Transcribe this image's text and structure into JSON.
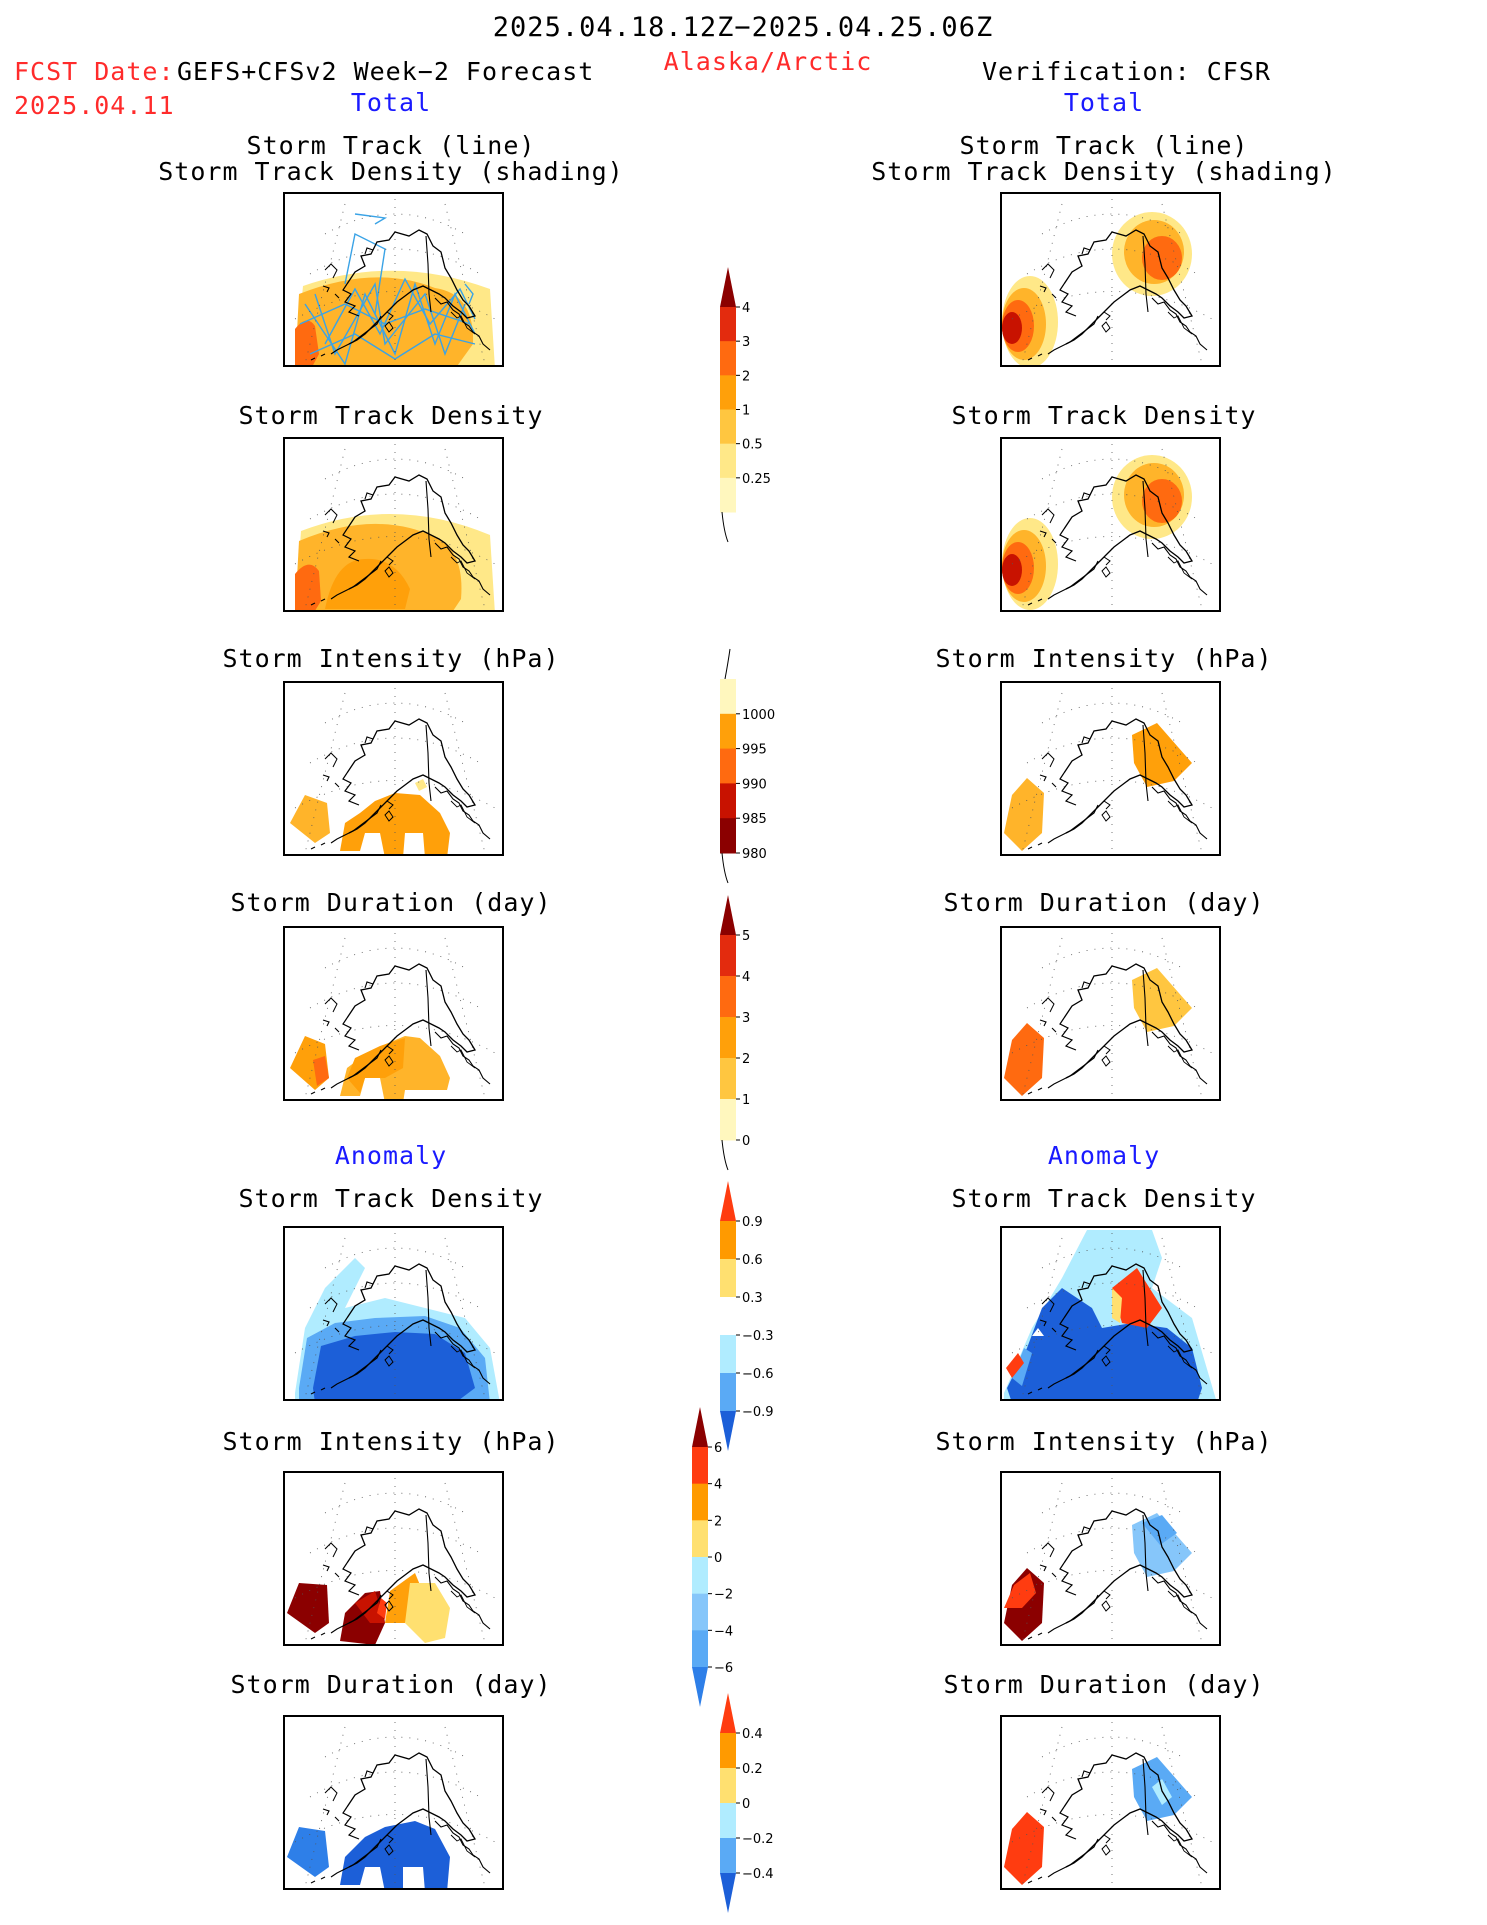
{
  "header": {
    "period": "2025.04.18.12Z−2025.04.25.06Z",
    "region": "Alaska/Arctic",
    "fcst_label": "FCST Date:",
    "fcst_product": "GEFS+CFSv2 Week−2 Forecast",
    "fcst_date": "2025.04.11",
    "verification": "Verification: CFSR"
  },
  "sections": {
    "total": "Total",
    "anomaly": "Anomaly"
  },
  "panel_titles": {
    "track_line": "Storm Track (line)",
    "track_shading": "Storm Track Density (shading)",
    "density": "Storm Track Density",
    "intensity": "Storm Intensity (hPa)",
    "duration": "Storm Duration (day)"
  },
  "colorbars": {
    "density_total": {
      "labels": [
        "4",
        "3",
        "2",
        "1",
        "0.5",
        "0.25"
      ],
      "colors": [
        "#8b0000",
        "#e32b0e",
        "#ff6a10",
        "#ffa00a",
        "#ffc640",
        "#ffe888",
        "#fff7be"
      ]
    },
    "intensity_total": {
      "labels": [
        "1000",
        "995",
        "990",
        "985",
        "980"
      ],
      "colors": [
        "#fff7be",
        "#ffa00a",
        "#ff6a10",
        "#c81200",
        "#8b0000"
      ]
    },
    "duration_total": {
      "labels": [
        "5",
        "4",
        "3",
        "2",
        "1",
        "0"
      ],
      "colors": [
        "#8b0000",
        "#e32b0e",
        "#ff6a10",
        "#ffa00a",
        "#ffc640",
        "#fff7be"
      ]
    },
    "density_anom": {
      "labels": [
        "0.9",
        "0.6",
        "0.3",
        "−0.3",
        "−0.6",
        "−0.9"
      ],
      "colors": [
        "#ff3c10",
        "#ff9a00",
        "#ffe070",
        "#ffffff",
        "#b0ecff",
        "#5aaaf5",
        "#1c5fd8"
      ]
    },
    "intensity_anom": {
      "labels": [
        "6",
        "4",
        "2",
        "0",
        "−2",
        "−4",
        "−6"
      ],
      "colors": [
        "#8b0000",
        "#ff3c10",
        "#ff9a00",
        "#ffe070",
        "#b0ecff",
        "#86c6fa",
        "#5aaaf5",
        "#2e7fe8"
      ]
    },
    "duration_anom": {
      "labels": [
        "0.4",
        "0.2",
        "0",
        "−0.2",
        "−0.4"
      ],
      "colors": [
        "#ff3c10",
        "#ff9a00",
        "#ffe070",
        "#b0ecff",
        "#5aaaf5",
        "#1c5fd8"
      ]
    }
  },
  "colors": {
    "title_red": "#ff2b2b",
    "section_blue": "#1a1aff",
    "track_line": "#3aa3e6"
  }
}
